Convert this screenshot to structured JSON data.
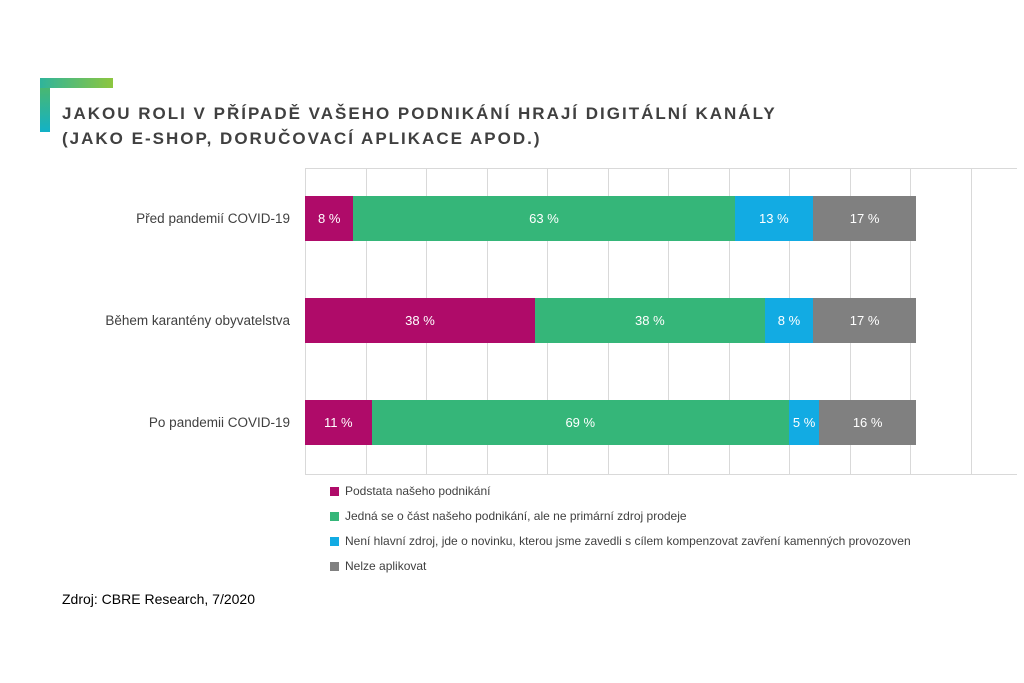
{
  "title": {
    "line1": "JAKOU ROLI V PŘÍPADĚ VAŠEHO PODNIKÁNÍ HRAJÍ DIGITÁLNÍ KANÁLY",
    "line2": "(JAKO E-SHOP, DORUČOVACÍ APLIKACE APOD.)"
  },
  "source": "Zdroj: CBRE Research, 7/2020",
  "colors": {
    "accent_gradient_start": "#12b1c7",
    "accent_gradient_end": "#8dc63f",
    "title_text": "#404040",
    "gridline": "#d9d9d9",
    "bar_label_text": "#ffffff"
  },
  "chart_data": {
    "type": "bar",
    "subtype": "horizontal-stacked",
    "title": "JAKOU ROLI V PŘÍPADĚ VAŠEHO PODNIKÁNÍ HRAJÍ DIGITÁLNÍ KANÁLY (JAKO E-SHOP, DORUČOVACÍ APLIKACE APOD.)",
    "categories": [
      "Před pandemií COVID-19",
      "Během karantény obyvatelstva",
      "Po pandemii COVID-19"
    ],
    "series": [
      {
        "name": "Podstata našeho podnikání",
        "color": "#af0b69",
        "values": [
          8,
          38,
          11
        ]
      },
      {
        "name": "Jedná se o část našeho podnikání, ale ne primární zdroj prodeje",
        "color": "#35b679",
        "values": [
          63,
          38,
          69
        ]
      },
      {
        "name": "Není hlavní zdroj, jde o novinku, kterou jsme zavedli s cílem kompenzovat zavření kamenných provozoven",
        "color": "#12abe3",
        "values": [
          13,
          8,
          5
        ]
      },
      {
        "name": "Nelze aplikovat",
        "color": "#808080",
        "values": [
          17,
          17,
          16
        ]
      }
    ],
    "value_suffix": " %",
    "xlim": [
      0,
      120
    ],
    "gridline_step": 10,
    "grid": true,
    "legend_position": "bottom",
    "data_labels": "inside-center"
  }
}
